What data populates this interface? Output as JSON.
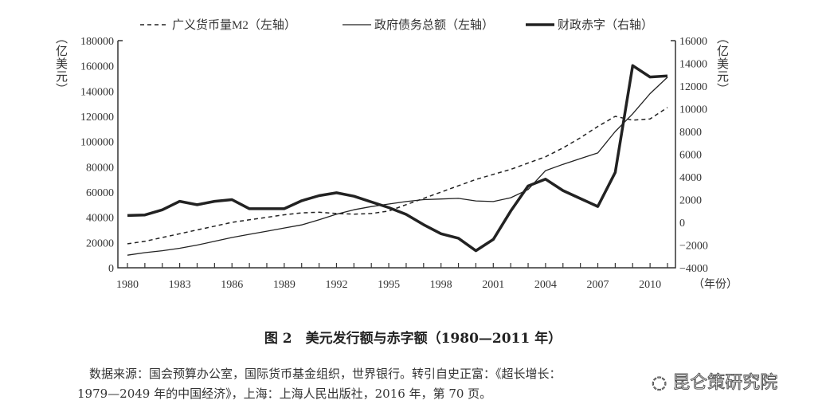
{
  "chart_data": {
    "type": "line",
    "title": "图 2　美元发行额与赤字额（1980—2011 年）",
    "xlabel": "（年份）",
    "ylabel_left": "（亿美元）",
    "ylabel_right": "（亿美元）",
    "ylim_left": [
      0,
      180000
    ],
    "ylim_right": [
      -4000,
      16000
    ],
    "xlim": [
      1980,
      2011
    ],
    "x_ticks": [
      "1980",
      "1983",
      "1986",
      "1989",
      "1992",
      "1995",
      "1998",
      "2001",
      "2004",
      "2007",
      "2010"
    ],
    "y_ticks_left": [
      "0",
      "20000",
      "40000",
      "60000",
      "80000",
      "100000",
      "120000",
      "140000",
      "160000",
      "180000"
    ],
    "y_ticks_right": [
      "-4000",
      "-2000",
      "0",
      "2000",
      "4000",
      "6000",
      "8000",
      "10000",
      "12000",
      "14000",
      "16000"
    ],
    "legend_position": "top",
    "grid": false,
    "x": [
      1980,
      1981,
      1982,
      1983,
      1984,
      1985,
      1986,
      1987,
      1988,
      1989,
      1990,
      1991,
      1992,
      1993,
      1994,
      1995,
      1996,
      1997,
      1998,
      1999,
      2000,
      2001,
      2002,
      2003,
      2004,
      2005,
      2006,
      2007,
      2008,
      2009,
      2010,
      2011
    ],
    "series": [
      {
        "name": "广义货币量M2（左轴）",
        "axis": "left",
        "style": "dashed",
        "color": "#222222",
        "values": [
          19000,
          21000,
          24000,
          27000,
          30000,
          33000,
          36000,
          38000,
          40000,
          42000,
          43500,
          44000,
          43000,
          42500,
          43000,
          45000,
          50000,
          55000,
          60000,
          65000,
          70000,
          74000,
          78000,
          83000,
          88000,
          95000,
          103000,
          112000,
          120000,
          117000,
          118000,
          127000
        ]
      },
      {
        "name": "政府债务总额（左轴）",
        "axis": "left",
        "style": "thin",
        "color": "#222222",
        "values": [
          10000,
          12000,
          13500,
          15500,
          18000,
          21000,
          24000,
          26500,
          29000,
          31500,
          34000,
          38000,
          42500,
          46000,
          48500,
          50500,
          52500,
          54000,
          54500,
          55000,
          53000,
          52500,
          55500,
          62000,
          77000,
          82000,
          86500,
          91000,
          108000,
          122000,
          138000,
          151000
        ]
      },
      {
        "name": "财政赤字（右轴）",
        "axis": "right",
        "style": "thick",
        "color": "#222222",
        "values": [
          600,
          650,
          1100,
          1850,
          1550,
          1850,
          2000,
          1200,
          1200,
          1200,
          1900,
          2350,
          2600,
          2300,
          1800,
          1300,
          700,
          -200,
          -1000,
          -1400,
          -2500,
          -1500,
          1000,
          3200,
          3800,
          2800,
          2100,
          1400,
          4400,
          13800,
          12800,
          12900
        ]
      }
    ]
  },
  "caption": "图 2　美元发行额与赤字额（1980—2011 年）",
  "source_line1": "数据来源：国会预算办公室，国际货币基金组织，世界银行。转引自史正富：《超长增长：",
  "source_line2": "1979—2049 年的中国经济》，上海：上海人民出版社，2016 年，第 70 页。",
  "watermark": "昆仑策研究院"
}
